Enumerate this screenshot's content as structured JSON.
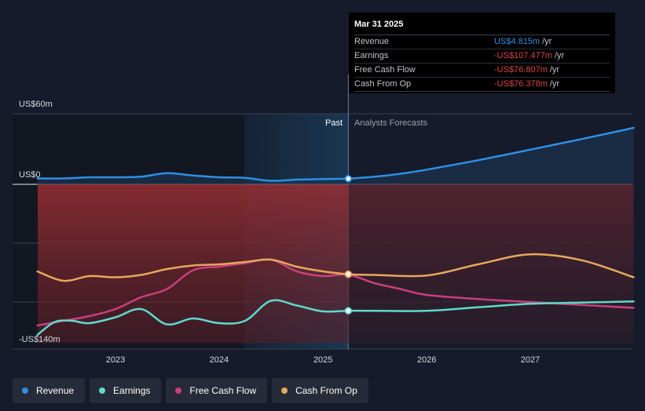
{
  "chart_data": {
    "type": "line",
    "y_axis": {
      "top_label": "US$60m",
      "zero_label": "US$0",
      "bottom_label": "-US$140m",
      "ylim": [
        -140,
        60
      ]
    },
    "x_ticks": [
      "2023",
      "2024",
      "2025",
      "2026",
      "2027"
    ],
    "xlim": [
      "2022-04-01",
      "2027-12-31"
    ],
    "divider_date": "2025-03-31",
    "past_label": "Past",
    "forecast_label": "Analysts Forecasts",
    "colors": {
      "revenue": "#2f8fe4",
      "earnings": "#5fd9cc",
      "free_cash_flow": "#c83f7e",
      "cash_from_op": "#e6a85c",
      "negative_fill": "#8c2a2e",
      "positive_fill": "#1b3350"
    },
    "series": [
      {
        "key": "revenue",
        "name": "Revenue",
        "points": [
          [
            "2022-04-01",
            5.0
          ],
          [
            "2022-07-01",
            5.0
          ],
          [
            "2022-10-01",
            6.0
          ],
          [
            "2023-01-01",
            6.0
          ],
          [
            "2023-04-01",
            6.5
          ],
          [
            "2023-07-01",
            9.5
          ],
          [
            "2023-10-01",
            7.5
          ],
          [
            "2024-01-01",
            6.0
          ],
          [
            "2024-04-01",
            5.5
          ],
          [
            "2024-07-01",
            3.0
          ],
          [
            "2024-10-01",
            4.0
          ],
          [
            "2025-01-01",
            4.5
          ],
          [
            "2025-03-31",
            4.815
          ],
          [
            "2025-07-01",
            6.5
          ],
          [
            "2025-10-01",
            9.0
          ],
          [
            "2026-01-01",
            12.5
          ],
          [
            "2026-07-01",
            20.5
          ],
          [
            "2027-01-01",
            29.5
          ],
          [
            "2027-07-01",
            38.5
          ],
          [
            "2027-12-31",
            48.0
          ]
        ]
      },
      {
        "key": "earnings",
        "name": "Earnings",
        "points": [
          [
            "2022-04-01",
            -128.0
          ],
          [
            "2022-06-01",
            -117.0
          ],
          [
            "2022-08-01",
            -116.0
          ],
          [
            "2022-10-01",
            -118.0
          ],
          [
            "2023-01-01",
            -113.0
          ],
          [
            "2023-04-01",
            -106.0
          ],
          [
            "2023-07-01",
            -119.0
          ],
          [
            "2023-10-01",
            -114.0
          ],
          [
            "2024-01-01",
            -118.0
          ],
          [
            "2024-04-01",
            -116.0
          ],
          [
            "2024-07-01",
            -99.0
          ],
          [
            "2024-10-01",
            -103.0
          ],
          [
            "2025-01-01",
            -108.0
          ],
          [
            "2025-03-31",
            -107.477
          ],
          [
            "2025-07-01",
            -107.5
          ],
          [
            "2026-01-01",
            -107.5
          ],
          [
            "2026-07-01",
            -104.5
          ],
          [
            "2027-01-01",
            -101.5
          ],
          [
            "2027-07-01",
            -100.5
          ],
          [
            "2027-12-31",
            -99.5
          ]
        ]
      },
      {
        "key": "free_cash_flow",
        "name": "Free Cash Flow",
        "points": [
          [
            "2022-04-01",
            -120.0
          ],
          [
            "2022-07-01",
            -116.0
          ],
          [
            "2022-10-01",
            -112.0
          ],
          [
            "2023-01-01",
            -106.0
          ],
          [
            "2023-04-01",
            -96.0
          ],
          [
            "2023-07-01",
            -89.0
          ],
          [
            "2023-10-01",
            -73.0
          ],
          [
            "2024-01-01",
            -70.0
          ],
          [
            "2024-04-01",
            -67.0
          ],
          [
            "2024-07-01",
            -64.0
          ],
          [
            "2024-10-01",
            -74.0
          ],
          [
            "2025-01-01",
            -78.0
          ],
          [
            "2025-03-31",
            -76.807
          ],
          [
            "2025-07-01",
            -84.0
          ],
          [
            "2025-10-01",
            -89.0
          ],
          [
            "2026-01-01",
            -94.0
          ],
          [
            "2026-07-01",
            -97.5
          ],
          [
            "2027-01-01",
            -100.0
          ],
          [
            "2027-07-01",
            -102.5
          ],
          [
            "2027-12-31",
            -105.0
          ]
        ]
      },
      {
        "key": "cash_from_op",
        "name": "Cash From Op",
        "points": [
          [
            "2022-04-01",
            -74.0
          ],
          [
            "2022-07-01",
            -82.0
          ],
          [
            "2022-10-01",
            -78.0
          ],
          [
            "2023-01-01",
            -79.0
          ],
          [
            "2023-04-01",
            -77.0
          ],
          [
            "2023-07-01",
            -72.0
          ],
          [
            "2023-10-01",
            -69.0
          ],
          [
            "2024-01-01",
            -68.0
          ],
          [
            "2024-04-01",
            -66.0
          ],
          [
            "2024-07-01",
            -64.0
          ],
          [
            "2024-10-01",
            -70.0
          ],
          [
            "2025-01-01",
            -74.0
          ],
          [
            "2025-03-31",
            -76.378
          ],
          [
            "2025-07-01",
            -77.0
          ],
          [
            "2026-01-01",
            -77.5
          ],
          [
            "2026-07-01",
            -68.0
          ],
          [
            "2027-01-01",
            -59.5
          ],
          [
            "2027-07-01",
            -64.5
          ],
          [
            "2027-12-31",
            -79.0
          ]
        ]
      }
    ]
  },
  "tooltip": {
    "date": "Mar 31 2025",
    "rows": [
      {
        "label": "Revenue",
        "value": "US$4.815m",
        "unit": "/yr",
        "color": "#2f8fe4"
      },
      {
        "label": "Earnings",
        "value": "-US$107.477m",
        "unit": "/yr",
        "color": "#e04545"
      },
      {
        "label": "Free Cash Flow",
        "value": "-US$76.807m",
        "unit": "/yr",
        "color": "#e04545"
      },
      {
        "label": "Cash From Op",
        "value": "-US$76.378m",
        "unit": "/yr",
        "color": "#e04545"
      }
    ]
  },
  "legend": [
    {
      "label": "Revenue",
      "color": "#2f8fe4"
    },
    {
      "label": "Earnings",
      "color": "#5fd9cc"
    },
    {
      "label": "Free Cash Flow",
      "color": "#c83f7e"
    },
    {
      "label": "Cash From Op",
      "color": "#e6a85c"
    }
  ]
}
